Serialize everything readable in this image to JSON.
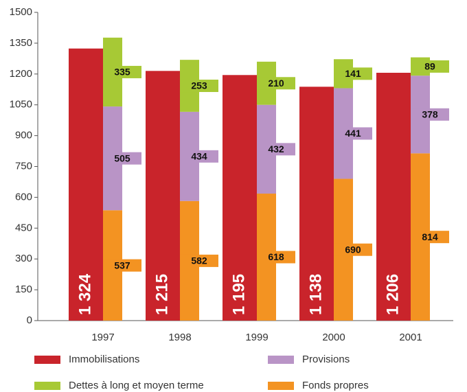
{
  "chart_data": {
    "type": "bar",
    "categories": [
      "1997",
      "1998",
      "1999",
      "2000",
      "2001"
    ],
    "series": [
      {
        "name": "Immobilisations",
        "color": "#c9242b",
        "stack": 0,
        "values": [
          1324,
          1215,
          1195,
          1138,
          1206
        ],
        "value_labels": [
          "1 324",
          "1 215",
          "1 195",
          "1 138",
          "1 206"
        ]
      },
      {
        "name": "Fonds propres",
        "color": "#f39322",
        "stack": 1,
        "values": [
          537,
          582,
          618,
          690,
          814
        ]
      },
      {
        "name": "Provisions",
        "color": "#b994c6",
        "stack": 1,
        "values": [
          505,
          434,
          432,
          441,
          378
        ]
      },
      {
        "name": "Dettes à long et moyen terme",
        "color": "#a7c935",
        "stack": 1,
        "values": [
          335,
          253,
          210,
          141,
          89
        ]
      }
    ],
    "ylim": [
      0,
      1500
    ],
    "yticks": [
      0,
      150,
      300,
      450,
      600,
      750,
      900,
      1050,
      1200,
      1350,
      1500
    ]
  }
}
